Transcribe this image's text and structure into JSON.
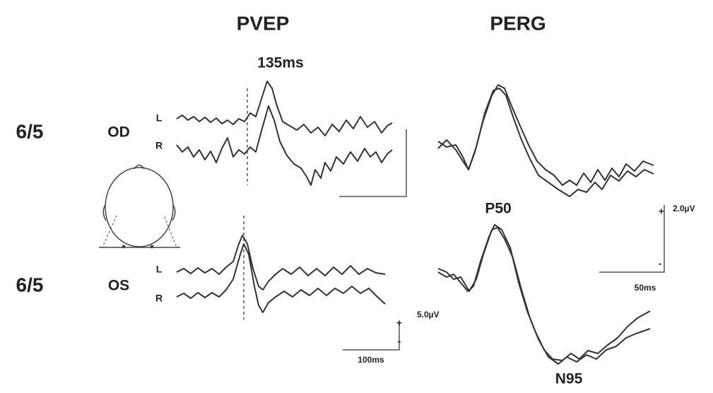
{
  "headers": {
    "pvep": "PVEP",
    "perg": "PERG"
  },
  "rows": [
    {
      "acuity": "6/5",
      "eye": "OD",
      "traces": [
        "L",
        "R"
      ]
    },
    {
      "acuity": "6/5",
      "eye": "OS",
      "traces": [
        "L",
        "R"
      ]
    }
  ],
  "annotations": {
    "latency": "135ms",
    "p50": "P50",
    "n95": "N95"
  },
  "scales": {
    "perg": {
      "amplitude": "2.0µV",
      "time": "50ms",
      "plus": "+",
      "minus": "-"
    },
    "pvep": {
      "amplitude": "5.0µV",
      "time": "100ms",
      "plus": "+",
      "minus": "-"
    }
  }
}
